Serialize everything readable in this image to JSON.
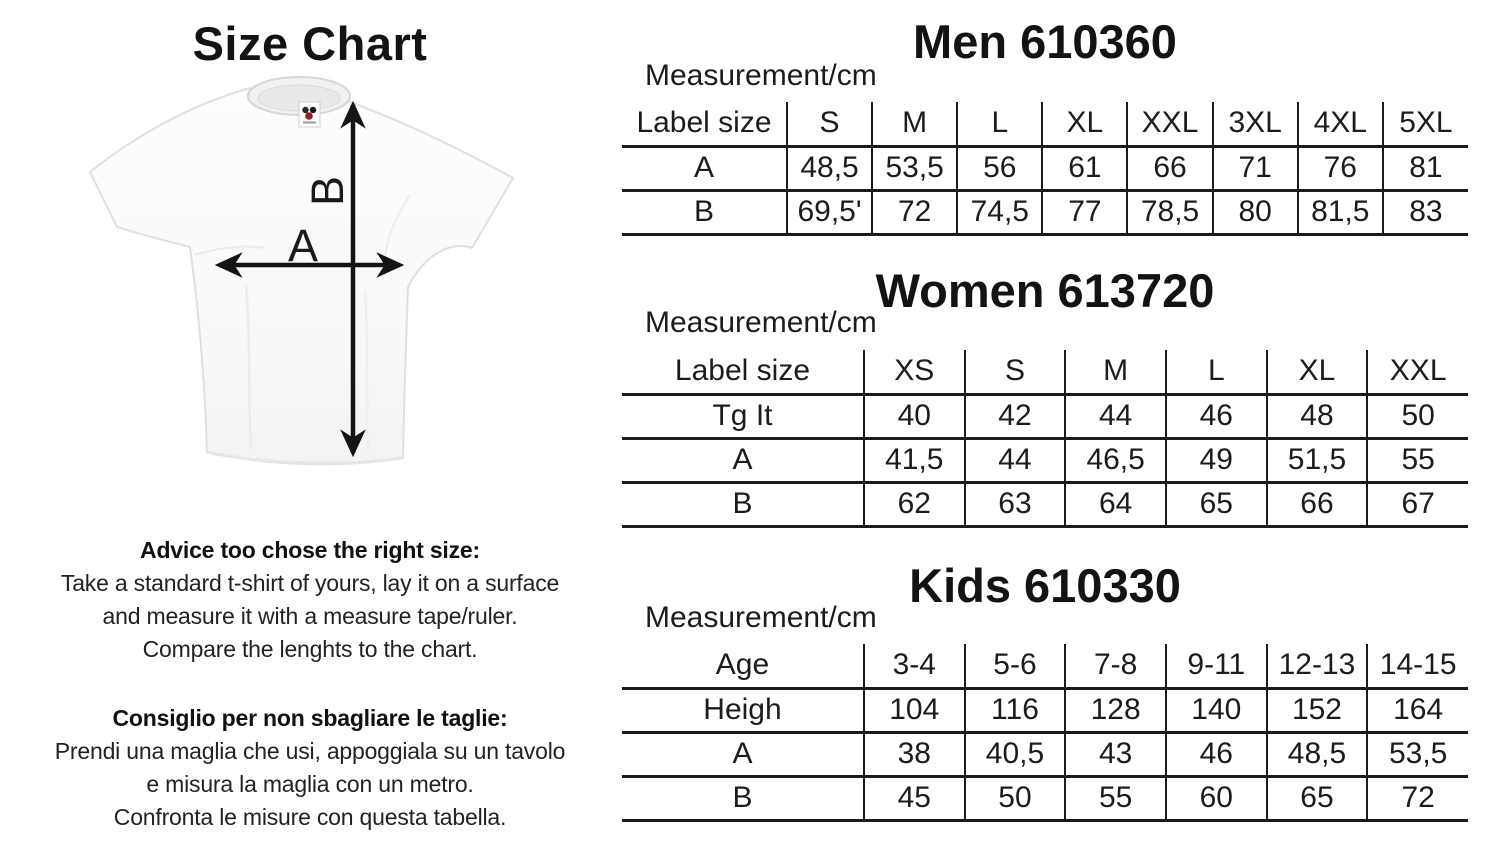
{
  "page": {
    "background": "#ffffff",
    "text_color": "#1a1a1a",
    "line_color": "#1b1b1b"
  },
  "left_panel": {
    "title": "Size Chart",
    "tshirt": {
      "width_arrow_label": "A",
      "height_arrow_label": "B",
      "brand_label_colors": {
        "dark": "#33241e",
        "black": "#151515",
        "red": "#8c2130"
      }
    },
    "advice_en": {
      "heading": "Advice too chose the right size:",
      "lines": [
        "Take a standard t-shirt of yours, lay it on a surface",
        "and measure it with a measure tape/ruler.",
        "Compare the lenghts to the chart."
      ]
    },
    "advice_it": {
      "heading": "Consiglio per non sbagliare le taglie:",
      "lines": [
        "Prendi una maglia che usi, appoggiala su un tavolo",
        "e misura la maglia con un metro.",
        "Confronta le misure con questa tabella."
      ]
    }
  },
  "tables": [
    {
      "id": "men",
      "title": "Men 610360",
      "subtitle": "Measurement/cm",
      "header": [
        "Label size",
        "S",
        "M",
        "L",
        "XL",
        "XXL",
        "3XL",
        "4XL",
        "5XL"
      ],
      "rows": [
        [
          "A",
          "48,5",
          "53,5",
          "56",
          "61",
          "66",
          "71",
          "76",
          "81"
        ],
        [
          "B",
          "69,5'",
          "72",
          "74,5",
          "77",
          "78,5",
          "80",
          "81,5",
          "83"
        ]
      ]
    },
    {
      "id": "women",
      "title": "Women 613720",
      "subtitle": "Measurement/cm",
      "header": [
        "Label size",
        "XS",
        "S",
        "M",
        "L",
        "XL",
        "XXL"
      ],
      "rows": [
        [
          "Tg It",
          "40",
          "42",
          "44",
          "46",
          "48",
          "50"
        ],
        [
          "A",
          "41,5",
          "44",
          "46,5",
          "49",
          "51,5",
          "55"
        ],
        [
          "B",
          "62",
          "63",
          "64",
          "65",
          "66",
          "67"
        ]
      ]
    },
    {
      "id": "kids",
      "title": "Kids 610330",
      "subtitle": "Measurement/cm",
      "header": [
        "Age",
        "3-4",
        "5-6",
        "7-8",
        "9-11",
        "12-13",
        "14-15"
      ],
      "rows": [
        [
          "Heigh",
          "104",
          "116",
          "128",
          "140",
          "152",
          "164"
        ],
        [
          "A",
          "38",
          "40,5",
          "43",
          "46",
          "48,5",
          "53,5"
        ],
        [
          "B",
          "45",
          "50",
          "55",
          "60",
          "65",
          "72"
        ]
      ]
    }
  ]
}
